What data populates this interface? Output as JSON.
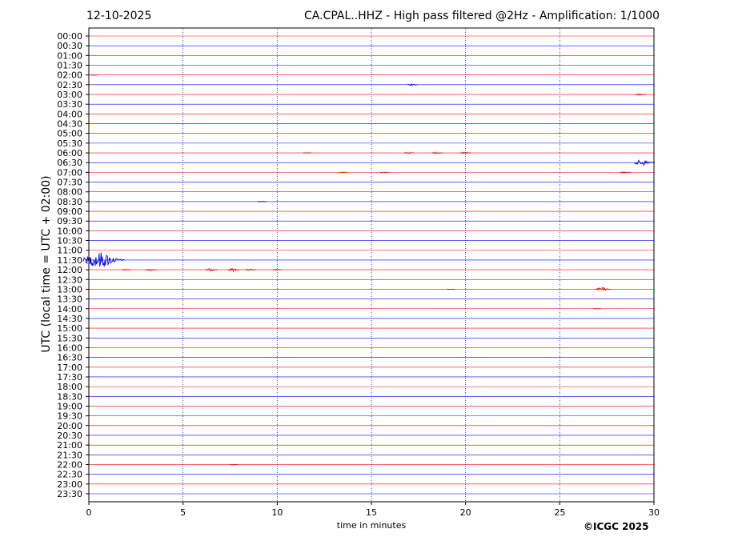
{
  "header": {
    "date": "12-10-2025",
    "title": "CA.CPAL..HHZ - High pass filtered @2Hz - Amplification: 1/1000"
  },
  "footer": {
    "copyright": "©ICGC 2025"
  },
  "chart_data": {
    "type": "line",
    "title": "CA.CPAL..HHZ - High pass filtered @2Hz - Amplification: 1/1000",
    "xlabel": "time in minutes",
    "ylabel": "UTC (local time = UTC + 02:00)",
    "xlim": [
      0,
      30
    ],
    "x_ticks": [
      "0",
      "5",
      "10",
      "15",
      "20",
      "25",
      "30"
    ],
    "y_tick_labels": [
      "00:00",
      "00:30",
      "01:00",
      "01:30",
      "02:00",
      "02:30",
      "03:00",
      "03:30",
      "04:00",
      "04:30",
      "05:00",
      "05:30",
      "06:00",
      "06:30",
      "07:00",
      "07:30",
      "08:00",
      "08:30",
      "09:00",
      "09:30",
      "10:00",
      "10:30",
      "11:00",
      "11:30",
      "12:00",
      "12:30",
      "13:00",
      "13:30",
      "14:00",
      "14:30",
      "15:00",
      "15:30",
      "16:00",
      "16:30",
      "17:00",
      "17:30",
      "18:00",
      "18:30",
      "19:00",
      "19:30",
      "20:00",
      "20:30",
      "21:00",
      "21:30",
      "22:00",
      "22:30",
      "23:00",
      "23:30"
    ],
    "trace_colors": [
      "#ff0000",
      "#0000ff"
    ],
    "vertical_grid": "dotted",
    "events": [
      {
        "trace": "02:00",
        "minute": 0.3,
        "amplitude": 0.6
      },
      {
        "trace": "02:30",
        "minute": 17.2,
        "amplitude": 1.2
      },
      {
        "trace": "03:00",
        "minute": 29.3,
        "amplitude": 1.3
      },
      {
        "trace": "06:00",
        "minute": 11.6,
        "amplitude": 0.5
      },
      {
        "trace": "06:00",
        "minute": 17.0,
        "amplitude": 1.0
      },
      {
        "trace": "06:00",
        "minute": 18.5,
        "amplitude": 1.2
      },
      {
        "trace": "06:00",
        "minute": 20.0,
        "amplitude": 1.1
      },
      {
        "trace": "06:30",
        "minute": 29.5,
        "amplitude": 4.0
      },
      {
        "trace": "07:00",
        "minute": 13.5,
        "amplitude": 0.5
      },
      {
        "trace": "07:00",
        "minute": 15.7,
        "amplitude": 0.6
      },
      {
        "trace": "07:00",
        "minute": 28.5,
        "amplitude": 1.2
      },
      {
        "trace": "08:30",
        "minute": 9.2,
        "amplitude": 0.8
      },
      {
        "trace": "11:30",
        "minute": 0.8,
        "amplitude": 10.0
      },
      {
        "trace": "12:00",
        "minute": 2.0,
        "amplitude": 0.8
      },
      {
        "trace": "12:00",
        "minute": 3.3,
        "amplitude": 1.2
      },
      {
        "trace": "12:00",
        "minute": 6.5,
        "amplitude": 1.6
      },
      {
        "trace": "12:00",
        "minute": 7.7,
        "amplitude": 1.8
      },
      {
        "trace": "12:00",
        "minute": 8.6,
        "amplitude": 1.2
      },
      {
        "trace": "12:00",
        "minute": 10.0,
        "amplitude": 0.7
      },
      {
        "trace": "13:00",
        "minute": 27.3,
        "amplitude": 2.5
      },
      {
        "trace": "13:00",
        "minute": 19.2,
        "amplitude": 0.3
      },
      {
        "trace": "14:00",
        "minute": 27.0,
        "amplitude": 0.4
      },
      {
        "trace": "22:00",
        "minute": 7.7,
        "amplitude": 0.4
      }
    ]
  }
}
